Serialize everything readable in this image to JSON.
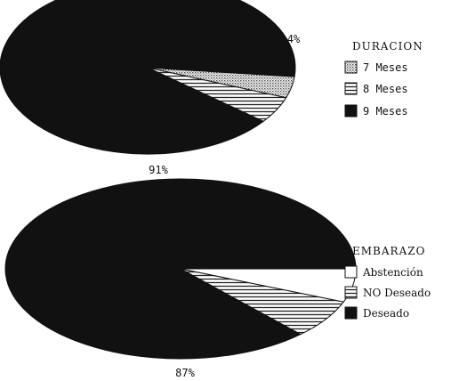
{
  "chart_data": [
    {
      "type": "pie",
      "title": "",
      "legend_title": "DURACION",
      "legend_placement": "right",
      "font": "mono",
      "slices": [
        {
          "label": "7 Meses",
          "value": 4,
          "value_label": "4%",
          "pattern": "dots"
        },
        {
          "label": "8 Meses",
          "value": 5,
          "value_label": "5%",
          "pattern": "lines"
        },
        {
          "label": "9 Meses",
          "value": 91,
          "value_label": "91%",
          "pattern": "solid"
        }
      ]
    },
    {
      "type": "pie",
      "title": "",
      "legend_title": "EMBARAZO",
      "legend_placement": "right",
      "font": "serif",
      "slices": [
        {
          "label": "Abstención",
          "value": 6,
          "value_label": "6%",
          "pattern": "white"
        },
        {
          "label": "NO Deseado",
          "value": 7,
          "value_label": "7%",
          "pattern": "lines"
        },
        {
          "label": "Deseado",
          "value": 87,
          "value_label": "87%",
          "pattern": "solid"
        }
      ]
    }
  ],
  "colors": {
    "solid": "#111111",
    "background": "#ffffff",
    "pattern_ink": "#333333"
  }
}
